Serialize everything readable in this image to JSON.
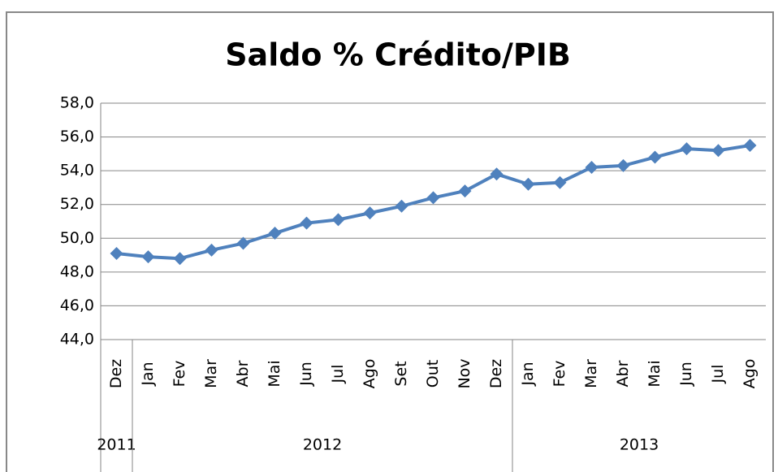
{
  "chart_data": {
    "type": "line",
    "title": "Saldo % Crédito/PIB",
    "categories": [
      "Dez",
      "Jan",
      "Fev",
      "Mar",
      "Abr",
      "Mai",
      "Jun",
      "Jul",
      "Ago",
      "Set",
      "Out",
      "Nov",
      "Dez",
      "Jan",
      "Fev",
      "Mar",
      "Abr",
      "Mai",
      "Jun",
      "Jul",
      "Ago"
    ],
    "year_labels": [
      "2011",
      "2012",
      "2013"
    ],
    "series": [
      {
        "name": "Saldo % Crédito/PIB",
        "color": "#4f81bd",
        "values": [
          49.1,
          48.9,
          48.8,
          49.3,
          49.7,
          50.3,
          50.9,
          51.1,
          51.5,
          51.9,
          52.4,
          52.8,
          53.8,
          53.2,
          53.3,
          54.2,
          54.3,
          54.8,
          55.3,
          55.2,
          55.5
        ]
      }
    ],
    "ylim": [
      44,
      58
    ],
    "yticks": [
      {
        "value": 44,
        "label": "44,0"
      },
      {
        "value": 46,
        "label": "46,0"
      },
      {
        "value": 48,
        "label": "48,0"
      },
      {
        "value": 50,
        "label": "50,0"
      },
      {
        "value": 52,
        "label": "52,0"
      },
      {
        "value": 54,
        "label": "54,0"
      },
      {
        "value": 56,
        "label": "56,0"
      },
      {
        "value": 58,
        "label": "58,0"
      }
    ],
    "grid": true
  }
}
